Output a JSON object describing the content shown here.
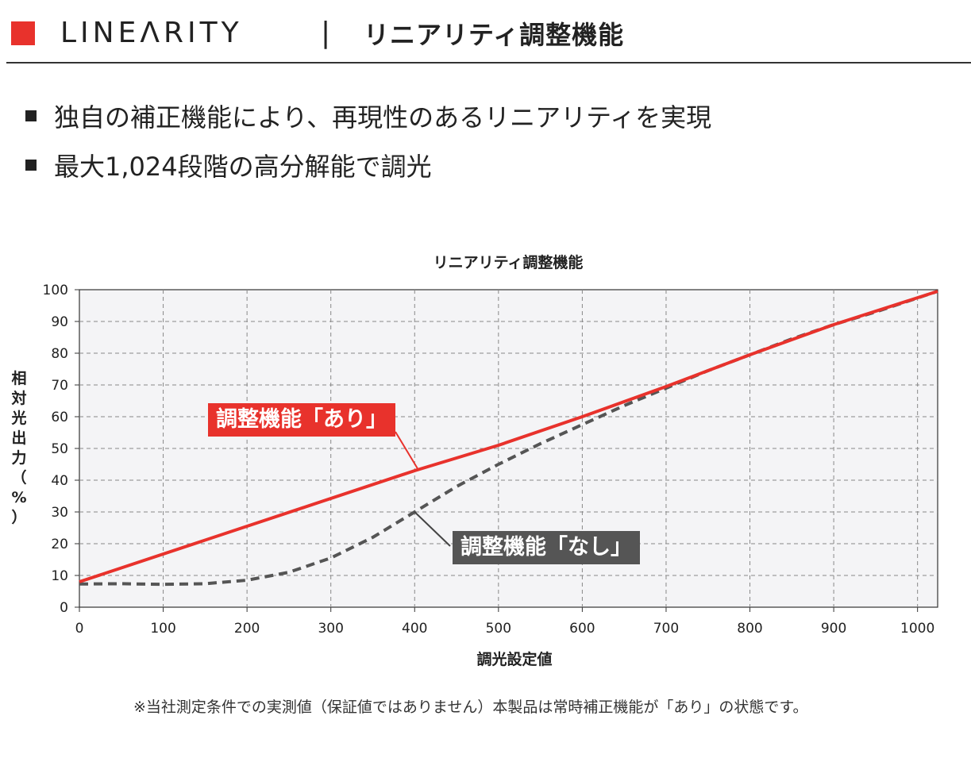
{
  "header": {
    "brand": "LINEΛRITY",
    "separator": "|",
    "title": "リニアリティ調整機能"
  },
  "bullets": [
    "独自の補正機能により、再現性のあるリニアリティを実現",
    "最大1,024段階の高分解能で調光"
  ],
  "callouts": {
    "with": "調整機能「あり」",
    "without": "調整機能「なし」"
  },
  "footnote": "※当社測定条件での実測値（保証値ではありません）本製品は常時補正機能が「あり」の状態です。",
  "colors": {
    "accent": "#e8322c",
    "dashed_series": "#555555",
    "plot_bg": "#f4f4f6"
  },
  "chart_data": {
    "type": "line",
    "title": "リニアリティ調整機能",
    "xlabel": "調光設定値",
    "ylabel": "相対光出力（%）",
    "xlim": [
      0,
      1024
    ],
    "ylim": [
      0,
      100
    ],
    "xticks": [
      0,
      100,
      200,
      300,
      400,
      500,
      600,
      700,
      800,
      900,
      1000
    ],
    "yticks": [
      0,
      10,
      20,
      30,
      40,
      50,
      60,
      70,
      80,
      90,
      100
    ],
    "grid": true,
    "series": [
      {
        "name": "調整機能「あり」",
        "style": "solid",
        "color": "#e8322c",
        "points": [
          [
            0,
            8
          ],
          [
            200,
            25.5
          ],
          [
            400,
            43
          ],
          [
            500,
            51
          ],
          [
            600,
            60
          ],
          [
            700,
            69.5
          ],
          [
            800,
            79.5
          ],
          [
            900,
            89
          ],
          [
            1024,
            99.5
          ]
        ]
      },
      {
        "name": "調整機能「なし」",
        "style": "dashed",
        "color": "#555555",
        "points": [
          [
            0,
            7.3
          ],
          [
            50,
            7.4
          ],
          [
            100,
            7.2
          ],
          [
            150,
            7.4
          ],
          [
            200,
            8.5
          ],
          [
            250,
            11
          ],
          [
            300,
            15.5
          ],
          [
            350,
            22
          ],
          [
            400,
            30
          ],
          [
            450,
            38
          ],
          [
            500,
            45
          ],
          [
            550,
            51.5
          ],
          [
            600,
            57.5
          ],
          [
            650,
            63.5
          ],
          [
            700,
            69
          ],
          [
            750,
            74.5
          ],
          [
            800,
            79.5
          ],
          [
            850,
            84.5
          ],
          [
            900,
            89
          ],
          [
            950,
            93
          ],
          [
            1024,
            99.5
          ]
        ]
      }
    ]
  }
}
